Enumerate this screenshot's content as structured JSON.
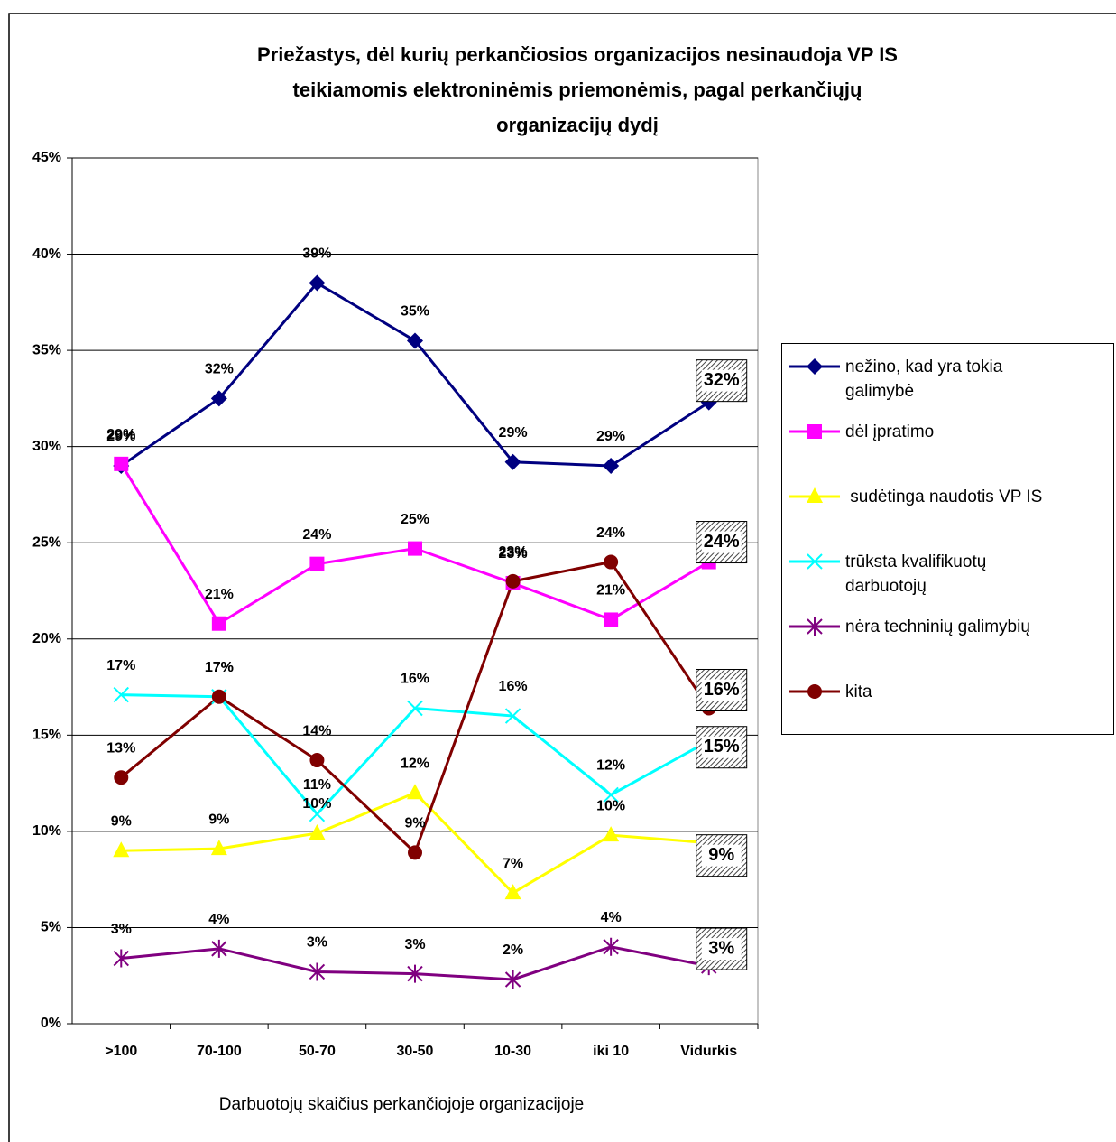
{
  "chart_data": {
    "type": "line",
    "title": [
      "Priežastys, dėl kurių perkančiosios organizacijos nesinaudoja VP IS",
      "teikiamomis elektroninėmis priemonėmis, pagal perkančiųjų",
      "organizacijų dydį"
    ],
    "x_label": "Darbuotojų skaičius perkančiojoje organizacijoje",
    "categories": [
      ">100",
      "70-100",
      "50-70",
      "30-50",
      "10-30",
      "iki 10",
      "Vidurkis"
    ],
    "ylim": [
      0,
      45
    ],
    "yticks": [
      {
        "value": 0,
        "label": "0%"
      },
      {
        "value": 5,
        "label": "5%"
      },
      {
        "value": 10,
        "label": "10%"
      },
      {
        "value": 15,
        "label": "15%"
      },
      {
        "value": 20,
        "label": "20%"
      },
      {
        "value": 25,
        "label": "25%"
      },
      {
        "value": 30,
        "label": "30%"
      },
      {
        "value": 35,
        "label": "35%"
      },
      {
        "value": 40,
        "label": "40%"
      },
      {
        "value": 45,
        "label": "45%"
      }
    ],
    "grid": true,
    "legend": "right",
    "series": [
      {
        "name": "nežino, kad yra tokia galimybė",
        "color": "#000080",
        "marker": "diamond",
        "values": [
          29.0,
          32.5,
          38.5,
          35.5,
          29.2,
          29.0,
          32.3
        ],
        "value_labels": [
          "29%",
          "32%",
          "39%",
          "35%",
          "29%",
          "29%",
          "32%"
        ]
      },
      {
        "name": "dėl įpratimo",
        "color": "#ff00ff",
        "marker": "square",
        "values": [
          29.1,
          20.8,
          23.9,
          24.7,
          22.9,
          21.0,
          24.0
        ],
        "value_labels": [
          "29%",
          "21%",
          "24%",
          "25%",
          "23%",
          "21%",
          "24%"
        ]
      },
      {
        "name": " sudėtinga naudotis VP IS",
        "color": "#ffff00",
        "marker": "triangle",
        "values": [
          9.0,
          9.1,
          9.9,
          12.0,
          6.8,
          9.8,
          9.4
        ],
        "value_labels": [
          "9%",
          "9%",
          "10%",
          "12%",
          "7%",
          "10%",
          "9%"
        ]
      },
      {
        "name": "trūksta kvalifikuotų darbuotojų",
        "color": "#00ffff",
        "marker": "x",
        "values": [
          17.1,
          17.0,
          10.9,
          16.4,
          16.0,
          11.9,
          14.7
        ],
        "value_labels": [
          "17%",
          "17%",
          "11%",
          "16%",
          "16%",
          "12%",
          "15%"
        ]
      },
      {
        "name": "nėra techninių galimybių",
        "color": "#800080",
        "marker": "star",
        "values": [
          3.4,
          3.9,
          2.7,
          2.6,
          2.3,
          4.0,
          3.0
        ],
        "value_labels": [
          "3%",
          "4%",
          "3%",
          "3%",
          "2%",
          "4%",
          "3%"
        ]
      },
      {
        "name": "kita",
        "color": "#800000",
        "marker": "circle",
        "values": [
          12.8,
          17.0,
          13.7,
          8.9,
          23.0,
          24.0,
          16.4
        ],
        "value_labels": [
          "13%",
          "17%",
          "14%",
          "9%",
          "23%",
          "24%",
          "16%"
        ]
      }
    ]
  }
}
